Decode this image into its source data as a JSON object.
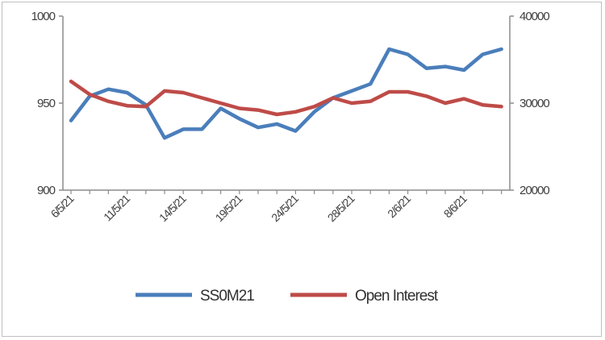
{
  "chart_data": {
    "type": "line",
    "x_labels": [
      "6/5/21",
      "11/5/21",
      "14/5/21",
      "19/5/21",
      "24/5/21",
      "28/5/21",
      "2/6/21",
      "8/6/21"
    ],
    "x_label_every": 3,
    "n_points": 24,
    "left_axis": {
      "ylim": [
        900,
        1000
      ],
      "ticks": [
        900,
        950,
        1000
      ]
    },
    "right_axis": {
      "ylim": [
        20000,
        40000
      ],
      "ticks": [
        20000,
        30000,
        40000
      ]
    },
    "series": [
      {
        "name": "SS0M21",
        "axis": "left",
        "color": "#4a7ebb",
        "values": [
          940,
          954,
          958,
          956,
          949,
          930,
          935,
          935,
          947,
          941,
          936,
          938,
          934,
          945,
          953,
          957,
          961,
          981,
          978,
          970,
          971,
          969,
          978,
          981
        ]
      },
      {
        "name": "Open Interest",
        "axis": "right",
        "color": "#be4b48",
        "values": [
          32500,
          31000,
          30200,
          29700,
          29600,
          31400,
          31200,
          30600,
          30000,
          29400,
          29200,
          28700,
          29000,
          29600,
          30600,
          30000,
          30200,
          31300,
          31300,
          30800,
          30000,
          30500,
          29800,
          29600
        ]
      }
    ],
    "grid": false,
    "legend_position": "bottom"
  }
}
